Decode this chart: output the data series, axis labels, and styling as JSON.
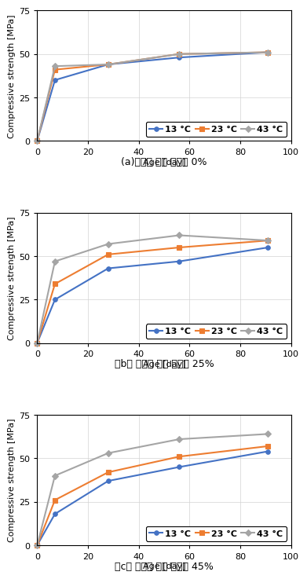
{
  "x": [
    0,
    7,
    28,
    56,
    91
  ],
  "charts": [
    {
      "title": "(a)플라이 애쉬 치환율 0%",
      "series": {
        "13": [
          0,
          35,
          44,
          48,
          51
        ],
        "23": [
          0,
          41,
          44,
          50,
          51
        ],
        "43": [
          0,
          43,
          44,
          50,
          51
        ]
      }
    },
    {
      "title": "（b） 플라이 애쉬 치환율 25%",
      "series": {
        "13": [
          0,
          25,
          43,
          47,
          55
        ],
        "23": [
          0,
          34,
          51,
          55,
          59
        ],
        "43": [
          0,
          47,
          57,
          62,
          59
        ]
      }
    },
    {
      "title": "（c） 플라이 애쉬 치환율 45%",
      "series": {
        "13": [
          0,
          18,
          37,
          45,
          54
        ],
        "23": [
          0,
          26,
          42,
          51,
          57
        ],
        "43": [
          0,
          40,
          53,
          61,
          64
        ]
      }
    }
  ],
  "colors": {
    "13": "#4472C4",
    "23": "#ED7D31",
    "43": "#A5A5A5"
  },
  "markers": {
    "13": "o",
    "23": "s",
    "43": "D"
  },
  "legend_labels": {
    "13": "13 °C",
    "23": "23 °C",
    "43": "43 °C"
  },
  "xlabel": "Age [day]",
  "ylabel": "Compressive strength [MPa]",
  "xlim": [
    0,
    100
  ],
  "ylim": [
    0,
    75
  ],
  "xticks": [
    0,
    20,
    40,
    60,
    80,
    100
  ],
  "yticks": [
    0,
    25,
    50,
    75
  ],
  "linewidth": 1.5,
  "markersize": 4,
  "title_fontsize": 9,
  "axis_fontsize": 8,
  "tick_fontsize": 8,
  "legend_fontsize": 8
}
